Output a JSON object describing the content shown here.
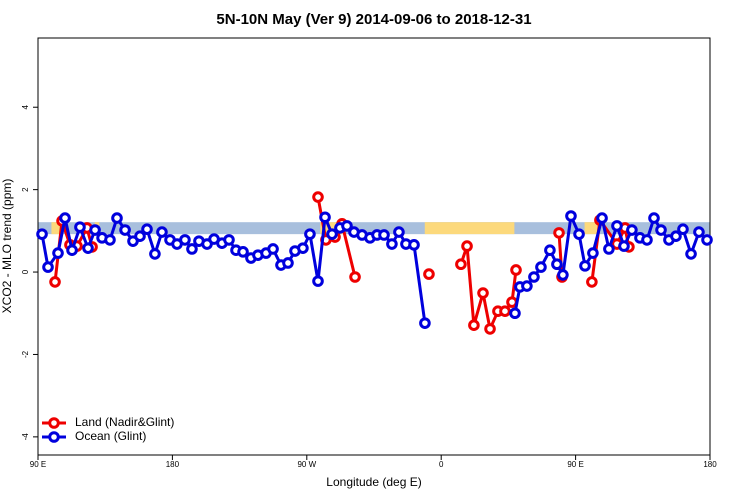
{
  "chart_data": {
    "type": "line",
    "title": "5N-10N May (Ver 9)   2014-09-06 to 2018-12-31",
    "xlabel": "Longitude (deg E)",
    "ylabel": "XCO2 - MLO trend (ppm)",
    "xlim": [
      90,
      540
    ],
    "xticks": [
      {
        "value": 90,
        "label": "90 E"
      },
      180,
      {
        "value": 270,
        "label": "90 W"
      },
      {
        "value": 360,
        "label": "0"
      },
      {
        "value": 450,
        "label": "90 E"
      },
      {
        "value": 540,
        "label": "180"
      }
    ],
    "ylim": [
      -4.44,
      5.68
    ],
    "yticks": [
      -4,
      -2,
      0,
      2,
      4
    ],
    "legend": "bottomleft",
    "band": {
      "ylim": [
        0.92,
        1.21
      ],
      "color": "#a8bfdd",
      "land_color": "#fcd97c",
      "land": [
        [
          99,
          106
        ],
        [
          128,
          131
        ],
        [
          279,
          296
        ],
        [
          349,
          409
        ],
        [
          456,
          466
        ]
      ]
    },
    "series": [
      {
        "name": "Land (Nadir&Glint)",
        "color": "#ee0000",
        "x": [
          101.4,
          106.1,
          111.4,
          116.1,
          122.8,
          126.2,
          null,
          277.5,
          282.8,
          288.9,
          293.6,
          302.3,
          null,
          351.8,
          null,
          373.2,
          377.3,
          381.9,
          388.0,
          392.7,
          398.0,
          402.7,
          407.4,
          410.1,
          null,
          438.9,
          440.9,
          null,
          460.9,
          466.3,
          477.7,
          483.1,
          485.7
        ],
        "values": [
          -0.24,
          1.24,
          0.66,
          0.63,
          1.07,
          0.61,
          null,
          1.82,
          0.78,
          0.85,
          1.17,
          -0.12,
          null,
          -0.05,
          null,
          0.19,
          0.63,
          -1.29,
          -0.51,
          -1.38,
          -0.95,
          -0.95,
          -0.73,
          0.05,
          null,
          0.95,
          -0.12,
          null,
          -0.24,
          1.26,
          0.68,
          1.07,
          0.61
        ]
      },
      {
        "name": "Ocean (Glint)",
        "color": "#0000dd",
        "x": [
          92.7,
          96.7,
          103.4,
          108.1,
          112.8,
          118.1,
          123.5,
          128.2,
          132.9,
          138.2,
          142.9,
          148.3,
          153.6,
          158.3,
          163.0,
          168.3,
          173.0,
          178.4,
          183.1,
          188.4,
          193.1,
          197.8,
          203.2,
          207.9,
          213.2,
          217.9,
          222.6,
          227.3,
          232.6,
          237.3,
          242.7,
          247.4,
          252.7,
          257.4,
          262.1,
          267.4,
          272.1,
          277.5,
          282.2,
          286.9,
          292.2,
          296.9,
          301.6,
          307.0,
          312.3,
          317.0,
          321.7,
          327.0,
          331.7,
          336.4,
          341.8,
          349.1,
          null,
          409.4,
          412.7,
          417.4,
          422.1,
          426.8,
          432.8,
          437.5,
          441.5,
          446.9,
          452.3,
          456.3,
          461.6,
          467.7,
          472.3,
          477.7,
          482.4,
          487.7,
          493.1,
          497.8,
          502.5,
          507.2,
          512.5,
          517.2,
          521.9,
          527.3,
          532.6,
          538.0
        ],
        "values": [
          0.92,
          0.12,
          0.46,
          1.31,
          0.53,
          1.09,
          0.58,
          1.02,
          0.83,
          0.78,
          1.31,
          1.02,
          0.75,
          0.87,
          1.04,
          0.44,
          0.97,
          0.78,
          0.68,
          0.78,
          0.56,
          0.75,
          0.68,
          0.8,
          0.7,
          0.78,
          0.53,
          0.49,
          0.34,
          0.41,
          0.46,
          0.56,
          0.17,
          0.22,
          0.51,
          0.58,
          0.92,
          -0.22,
          1.33,
          0.92,
          1.07,
          1.12,
          0.97,
          0.9,
          0.83,
          0.9,
          0.9,
          0.68,
          0.97,
          0.68,
          0.66,
          -1.24,
          null,
          -1.0,
          -0.36,
          -0.34,
          -0.12,
          0.12,
          0.53,
          0.19,
          -0.07,
          1.36,
          0.92,
          0.15,
          0.46,
          1.31,
          0.56,
          1.12,
          0.63,
          1.02,
          0.83,
          0.78,
          1.31,
          1.02,
          0.78,
          0.87,
          1.04,
          0.44,
          0.97,
          0.78
        ]
      }
    ]
  }
}
